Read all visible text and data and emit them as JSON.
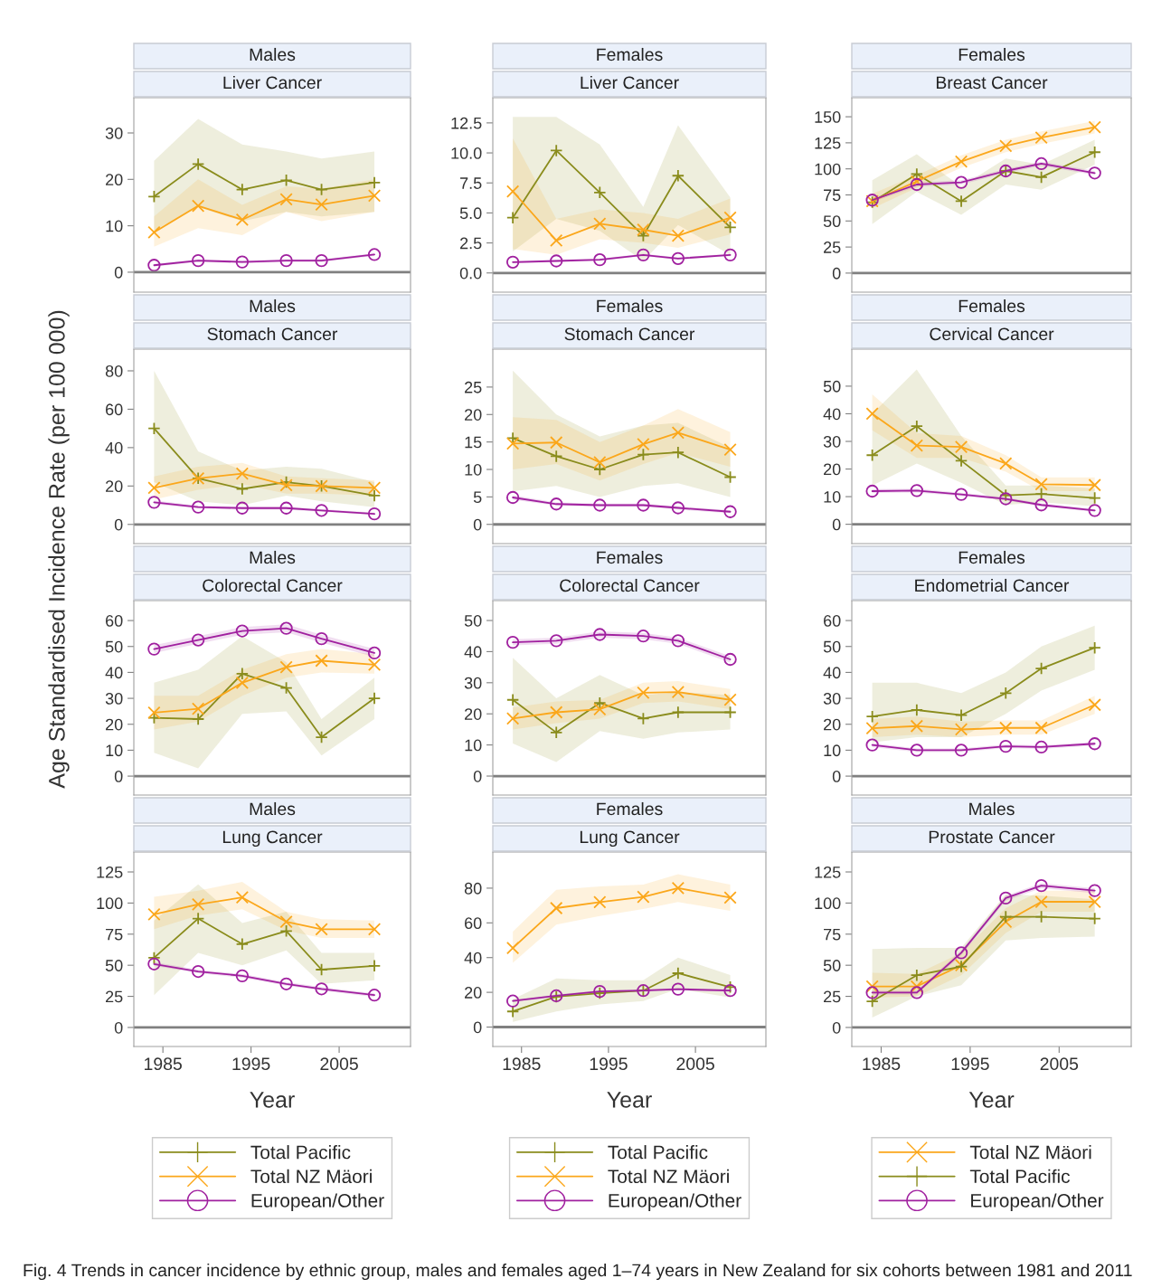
{
  "chart_data": [
    {
      "type": "line",
      "title": "Males",
      "subtitle": "Liver Cancer",
      "ylabel": "Age Standardised Incidence Rate (per 100 000)",
      "annotations": [
        "Fig. 4 Trends in cancer incidence by ethnic group, males and females aged 1–74 years in New Zealand for six cohorts between 1981 and 2011"
      ],
      "x": [
        1984,
        1989,
        1994,
        1999,
        2003,
        2009
      ],
      "xlim": [
        1981.7,
        2013.1
      ],
      "xticks": [
        1985,
        1995,
        2005
      ],
      "ylim": [
        -4.3,
        37.6
      ],
      "yticks": [
        0,
        10,
        20,
        30
      ],
      "tick_labels": "y",
      "ref_lines": [
        {
          "axis": "y",
          "value": 0,
          "color": "#808080"
        }
      ],
      "series": [
        {
          "color": "#8a8c1c",
          "marker": "plus",
          "values": [
            16.3,
            23.3,
            17.8,
            19.8,
            17.8,
            19.3
          ],
          "lower": [
            9,
            14,
            11,
            13,
            12,
            13
          ],
          "upper": [
            24,
            33,
            27.5,
            26,
            24.5,
            26
          ]
        },
        {
          "color": "#fba71b",
          "marker": "cross",
          "values": [
            8.6,
            14.3,
            11.3,
            15.7,
            14.6,
            16.5
          ],
          "lower": [
            5.5,
            9.5,
            8,
            13,
            11,
            13
          ],
          "upper": [
            12,
            20,
            14.5,
            18.5,
            18,
            20
          ]
        },
        {
          "color": "#a0209f",
          "marker": "circle",
          "values": [
            1.5,
            2.5,
            2.2,
            2.5,
            2.5,
            3.8
          ],
          "lower": [
            1.2,
            2.2,
            1.9,
            2.2,
            2.2,
            3.5
          ],
          "upper": [
            1.8,
            2.8,
            2.5,
            2.8,
            2.8,
            4.1
          ]
        }
      ]
    },
    {
      "type": "line",
      "title": "Females",
      "subtitle": "Liver Cancer",
      "x": [
        1984,
        1989,
        1994,
        1999,
        2003,
        2009
      ],
      "xlim": [
        1981.7,
        2013.1
      ],
      "xticks": [
        1985,
        1995,
        2005
      ],
      "ylim": [
        -1.6,
        14.6
      ],
      "yticks": [
        {
          "value": 0,
          "label": "0.0"
        },
        2.5,
        {
          "value": 5,
          "label": "5.0"
        },
        7.5,
        {
          "value": 10,
          "label": "10.0"
        },
        12.5
      ],
      "tick_labels": "y",
      "ref_lines": [
        {
          "axis": "y",
          "value": 0,
          "color": "#808080"
        }
      ],
      "series": [
        {
          "color": "#8a8c1c",
          "marker": "plus",
          "values": [
            4.6,
            10.2,
            6.7,
            3.1,
            8.1,
            3.8
          ],
          "lower": [
            1.8,
            4.5,
            3.5,
            1.0,
            4.0,
            1.5
          ],
          "upper": [
            13,
            13,
            10.7,
            5.5,
            12.3,
            6.3
          ]
        },
        {
          "color": "#fba71b",
          "marker": "cross",
          "values": [
            6.8,
            2.7,
            4.1,
            3.6,
            3.1,
            4.6
          ],
          "lower": [
            2,
            1.5,
            2.8,
            2.5,
            2.1,
            3.2
          ],
          "upper": [
            11.2,
            4.5,
            5.3,
            5,
            4.5,
            6.2
          ]
        },
        {
          "color": "#a0209f",
          "marker": "circle",
          "values": [
            0.9,
            1.0,
            1.1,
            1.5,
            1.2,
            1.5
          ],
          "lower": [
            0.8,
            0.9,
            1.0,
            1.4,
            1.1,
            1.4
          ],
          "upper": [
            1.0,
            1.1,
            1.2,
            1.6,
            1.3,
            1.6
          ]
        }
      ]
    },
    {
      "type": "line",
      "title": "Females",
      "subtitle": "Breast Cancer",
      "x": [
        1984,
        1989,
        1994,
        1999,
        2003,
        2009
      ],
      "xlim": [
        1981.7,
        2013.1
      ],
      "xticks": [
        1985,
        1995,
        2005
      ],
      "ylim": [
        -18.3,
        168.3
      ],
      "yticks": [
        0,
        25,
        50,
        75,
        100,
        125,
        150
      ],
      "tick_labels": "y",
      "ref_lines": [
        {
          "axis": "y",
          "value": 0,
          "color": "#808080"
        }
      ],
      "series": [
        {
          "color": "#8a8c1c",
          "marker": "plus",
          "values": [
            68,
            95,
            69,
            98,
            92,
            116
          ],
          "lower": [
            47,
            78,
            56,
            85,
            80,
            104
          ],
          "upper": [
            89,
            114,
            83,
            110,
            104,
            128
          ]
        },
        {
          "color": "#fba71b",
          "marker": "cross",
          "values": [
            69,
            88,
            107,
            122,
            130,
            140
          ],
          "lower": [
            62,
            82,
            101,
            116,
            124,
            134
          ],
          "upper": [
            76,
            94,
            113,
            128,
            136,
            146
          ]
        },
        {
          "color": "#a0209f",
          "marker": "circle",
          "values": [
            70,
            85,
            87,
            98,
            105,
            96
          ],
          "lower": [
            68,
            83,
            85,
            96,
            103,
            94
          ],
          "upper": [
            72,
            87,
            89,
            100,
            107,
            98
          ]
        }
      ]
    },
    {
      "type": "line",
      "title": "Males",
      "subtitle": "Stomach Cancer",
      "x": [
        1984,
        1989,
        1994,
        1999,
        2003,
        2009
      ],
      "xlim": [
        1981.7,
        2013.1
      ],
      "xticks": [
        1985,
        1995,
        2005
      ],
      "ylim": [
        -10,
        91.3
      ],
      "yticks": [
        0,
        20,
        40,
        60,
        80
      ],
      "tick_labels": "y",
      "ref_lines": [
        {
          "axis": "y",
          "value": 0,
          "color": "#808080"
        }
      ],
      "series": [
        {
          "color": "#8a8c1c",
          "marker": "plus",
          "values": [
            50,
            24,
            18.5,
            22,
            20,
            15
          ],
          "lower": [
            22,
            12,
            10,
            15,
            12,
            9
          ],
          "upper": [
            80,
            38,
            28,
            30,
            29,
            22
          ]
        },
        {
          "color": "#fba71b",
          "marker": "cross",
          "values": [
            19,
            24,
            26.5,
            20.5,
            20,
            19
          ],
          "lower": [
            13,
            18,
            21,
            16,
            16,
            15
          ],
          "upper": [
            25,
            30,
            32,
            25,
            24,
            23
          ]
        },
        {
          "color": "#a0209f",
          "marker": "circle",
          "values": [
            11.5,
            9,
            8.5,
            8.5,
            7.3,
            5.5
          ],
          "lower": [
            10.5,
            8.2,
            7.7,
            7.7,
            6.6,
            4.9
          ],
          "upper": [
            12.5,
            9.8,
            9.3,
            9.3,
            8,
            6.1
          ]
        }
      ]
    },
    {
      "type": "line",
      "title": "Females",
      "subtitle": "Stomach Cancer",
      "x": [
        1984,
        1989,
        1994,
        1999,
        2003,
        2009
      ],
      "xlim": [
        1981.7,
        2013.1
      ],
      "xticks": [
        1985,
        1995,
        2005
      ],
      "ylim": [
        -3.5,
        31.9
      ],
      "yticks": [
        0,
        5,
        10,
        15,
        20,
        25
      ],
      "tick_labels": "y",
      "ref_lines": [
        {
          "axis": "y",
          "value": 0,
          "color": "#808080"
        }
      ],
      "series": [
        {
          "color": "#8a8c1c",
          "marker": "plus",
          "values": [
            15.7,
            12.4,
            10,
            12.7,
            13.1,
            8.6
          ],
          "lower": [
            6,
            7,
            5,
            7,
            7.5,
            5
          ],
          "upper": [
            28,
            20,
            16,
            18,
            18.5,
            14
          ]
        },
        {
          "color": "#fba71b",
          "marker": "cross",
          "values": [
            14.7,
            14.9,
            11.3,
            14.6,
            16.7,
            13.6
          ],
          "lower": [
            10,
            11,
            8,
            11,
            13,
            10.5
          ],
          "upper": [
            19.5,
            19,
            15,
            18,
            21,
            16.8
          ]
        },
        {
          "color": "#a0209f",
          "marker": "circle",
          "values": [
            4.9,
            3.7,
            3.5,
            3.5,
            3.0,
            2.3
          ],
          "lower": [
            4.5,
            3.4,
            3.2,
            3.2,
            2.7,
            2.0
          ],
          "upper": [
            5.3,
            4.0,
            3.8,
            3.8,
            3.3,
            2.6
          ]
        }
      ]
    },
    {
      "type": "line",
      "title": "Females",
      "subtitle": "Cervical Cancer",
      "x": [
        1984,
        1989,
        1994,
        1999,
        2003,
        2009
      ],
      "xlim": [
        1981.7,
        2013.1
      ],
      "xticks": [
        1985,
        1995,
        2005
      ],
      "ylim": [
        -7,
        63.4
      ],
      "yticks": [
        0,
        10,
        20,
        30,
        40,
        50
      ],
      "tick_labels": "y",
      "ref_lines": [
        {
          "axis": "y",
          "value": 0,
          "color": "#808080"
        }
      ],
      "series": [
        {
          "color": "#8a8c1c",
          "marker": "plus",
          "values": [
            25,
            35.5,
            23,
            10.5,
            11,
            9.5
          ],
          "lower": [
            14,
            22,
            15,
            7,
            8,
            6.5
          ],
          "upper": [
            40,
            56,
            32,
            14,
            14,
            13
          ]
        },
        {
          "color": "#fba71b",
          "marker": "cross",
          "values": [
            40,
            28.5,
            28,
            22,
            14.5,
            14.2
          ],
          "lower": [
            34,
            24,
            24,
            19,
            12,
            12
          ],
          "upper": [
            47,
            33,
            32,
            25,
            17,
            17
          ]
        },
        {
          "color": "#a0209f",
          "marker": "circle",
          "values": [
            12,
            12.2,
            10.8,
            9.2,
            7,
            5
          ],
          "lower": [
            11.3,
            11.5,
            10.2,
            8.6,
            6.4,
            4.5
          ],
          "upper": [
            12.7,
            12.9,
            11.4,
            9.8,
            7.6,
            5.5
          ]
        }
      ]
    },
    {
      "type": "line",
      "title": "Males",
      "subtitle": "Colorectal Cancer",
      "x": [
        1984,
        1989,
        1994,
        1999,
        2003,
        2009
      ],
      "xlim": [
        1981.7,
        2013.1
      ],
      "xticks": [
        1985,
        1995,
        2005
      ],
      "ylim": [
        -7.3,
        67.7
      ],
      "yticks": [
        0,
        10,
        20,
        30,
        40,
        50,
        60
      ],
      "tick_labels": "y",
      "ref_lines": [
        {
          "axis": "y",
          "value": 0,
          "color": "#808080"
        }
      ],
      "series": [
        {
          "color": "#8a8c1c",
          "marker": "plus",
          "values": [
            22.5,
            22,
            39.5,
            34,
            15,
            30
          ],
          "lower": [
            9,
            3,
            24,
            25,
            8,
            22
          ],
          "upper": [
            36,
            41,
            54,
            44,
            22,
            38
          ]
        },
        {
          "color": "#fba71b",
          "marker": "cross",
          "values": [
            24.5,
            26,
            36,
            42,
            44.5,
            43
          ],
          "lower": [
            18,
            21,
            31,
            38,
            40,
            39.5
          ],
          "upper": [
            31,
            31,
            41,
            47,
            49,
            47
          ]
        },
        {
          "color": "#a0209f",
          "marker": "circle",
          "values": [
            49,
            52.5,
            56,
            57,
            53,
            47.5
          ],
          "lower": [
            47.5,
            51,
            54.5,
            55.5,
            51.5,
            46
          ],
          "upper": [
            50.5,
            54,
            57.5,
            58.5,
            54.5,
            49
          ]
        }
      ]
    },
    {
      "type": "line",
      "title": "Females",
      "subtitle": "Colorectal Cancer",
      "x": [
        1984,
        1989,
        1994,
        1999,
        2003,
        2009
      ],
      "xlim": [
        1981.7,
        2013.1
      ],
      "xticks": [
        1985,
        1995,
        2005
      ],
      "ylim": [
        -6.1,
        56.4
      ],
      "yticks": [
        0,
        10,
        20,
        30,
        40,
        50
      ],
      "tick_labels": "y",
      "ref_lines": [
        {
          "axis": "y",
          "value": 0,
          "color": "#808080"
        }
      ],
      "series": [
        {
          "color": "#8a8c1c",
          "marker": "plus",
          "values": [
            24.5,
            14,
            23.5,
            18.5,
            20.5,
            20.5
          ],
          "lower": [
            10.5,
            4.5,
            14.5,
            12,
            14,
            15
          ],
          "upper": [
            38,
            25,
            32.5,
            26,
            27,
            26
          ]
        },
        {
          "color": "#fba71b",
          "marker": "cross",
          "values": [
            18.5,
            20.5,
            21.5,
            26.8,
            27,
            24.5
          ],
          "lower": [
            15,
            17,
            18.5,
            23.5,
            24,
            21.5
          ],
          "upper": [
            22,
            24,
            24.5,
            30,
            30.5,
            28
          ]
        },
        {
          "color": "#a0209f",
          "marker": "circle",
          "values": [
            43,
            43.5,
            45.5,
            45,
            43.5,
            37.5
          ],
          "lower": [
            42,
            42.5,
            44.5,
            44,
            42.5,
            36.5
          ],
          "upper": [
            44,
            44.5,
            46.5,
            46,
            44.5,
            38.5
          ]
        }
      ]
    },
    {
      "type": "line",
      "title": "Females",
      "subtitle": "Endometrial Cancer",
      "x": [
        1984,
        1989,
        1994,
        1999,
        2003,
        2009
      ],
      "xlim": [
        1981.7,
        2013.1
      ],
      "xticks": [
        1985,
        1995,
        2005
      ],
      "ylim": [
        -7.3,
        67.7
      ],
      "yticks": [
        0,
        10,
        20,
        30,
        40,
        50,
        60
      ],
      "tick_labels": "y",
      "ref_lines": [
        {
          "axis": "y",
          "value": 0,
          "color": "#808080"
        }
      ],
      "series": [
        {
          "color": "#8a8c1c",
          "marker": "plus",
          "values": [
            23,
            25.5,
            23.5,
            32,
            41.5,
            49.5
          ],
          "lower": [
            13,
            15,
            15,
            24,
            33,
            41
          ],
          "upper": [
            36,
            36,
            32,
            40,
            50,
            58
          ]
        },
        {
          "color": "#fba71b",
          "marker": "cross",
          "values": [
            18.5,
            19.3,
            18,
            18.6,
            18.6,
            27.5
          ],
          "lower": [
            15,
            16,
            15,
            16,
            16,
            24
          ],
          "upper": [
            22,
            23,
            21,
            21.5,
            21.5,
            31
          ]
        },
        {
          "color": "#a0209f",
          "marker": "circle",
          "values": [
            12,
            10,
            10,
            11.5,
            11.2,
            12.5
          ],
          "lower": [
            11.2,
            9.3,
            9.3,
            10.8,
            10.5,
            11.8
          ],
          "upper": [
            12.8,
            10.7,
            10.7,
            12.2,
            11.9,
            13.2
          ]
        }
      ]
    },
    {
      "type": "line",
      "title": "Males",
      "subtitle": "Lung Cancer",
      "xlabel": "Year",
      "legend": "bottom",
      "x": [
        1984,
        1989,
        1994,
        1999,
        2003,
        2009
      ],
      "xlim": [
        1981.7,
        2013.1
      ],
      "xticks": [
        1985,
        1995,
        2005
      ],
      "ylim": [
        -15.3,
        141
      ],
      "yticks": [
        0,
        25,
        50,
        75,
        100,
        125
      ],
      "ref_lines": [
        {
          "axis": "y",
          "value": 0,
          "color": "#808080"
        }
      ],
      "series": [
        {
          "name": "Total Pacific",
          "color": "#8a8c1c",
          "marker": "plus",
          "values": [
            56,
            87.5,
            67,
            77.5,
            46.5,
            49.5
          ],
          "lower": [
            26,
            60,
            50,
            62,
            35,
            38
          ],
          "upper": [
            86,
            115,
            84,
            93,
            60,
            60
          ]
        },
        {
          "name": "Total NZ Mäori",
          "color": "#fba71b",
          "marker": "cross",
          "values": [
            91,
            99,
            104.5,
            85,
            79,
            79
          ],
          "lower": [
            79,
            90,
            95,
            78,
            72,
            72
          ],
          "upper": [
            105,
            110,
            117,
            93,
            87,
            86
          ]
        },
        {
          "name": "European/Other",
          "color": "#a0209f",
          "marker": "circle",
          "values": [
            51,
            45,
            41.5,
            35,
            31,
            26
          ],
          "lower": [
            49.5,
            43.5,
            40,
            33.5,
            29.5,
            24.5
          ],
          "upper": [
            52.5,
            46.5,
            43,
            36.5,
            32.5,
            27.5
          ]
        }
      ]
    },
    {
      "type": "line",
      "title": "Females",
      "subtitle": "Lung Cancer",
      "xlabel": "Year",
      "legend": "bottom",
      "x": [
        1984,
        1989,
        1994,
        1999,
        2003,
        2009
      ],
      "xlim": [
        1981.7,
        2013.1
      ],
      "xticks": [
        1985,
        1995,
        2005
      ],
      "ylim": [
        -11.2,
        100.8
      ],
      "yticks": [
        0,
        20,
        40,
        60,
        80
      ],
      "ref_lines": [
        {
          "axis": "y",
          "value": 0,
          "color": "#808080"
        }
      ],
      "series": [
        {
          "name": "Total Pacific",
          "color": "#8a8c1c",
          "marker": "plus",
          "values": [
            9,
            17.5,
            19.5,
            21,
            31,
            23
          ],
          "lower": [
            3,
            9,
            13,
            15,
            22,
            17
          ],
          "upper": [
            16,
            28,
            27,
            27,
            40,
            30
          ]
        },
        {
          "name": "Total NZ Mäori",
          "color": "#fba71b",
          "marker": "cross",
          "values": [
            45.5,
            68.5,
            72,
            75,
            80,
            74.5
          ],
          "lower": [
            37,
            59,
            64,
            68,
            72,
            67
          ],
          "upper": [
            55,
            79,
            81,
            82,
            88,
            82
          ]
        },
        {
          "name": "European/Other",
          "color": "#a0209f",
          "marker": "circle",
          "values": [
            15,
            18,
            20.5,
            21,
            21.8,
            21
          ],
          "lower": [
            14.3,
            17.3,
            19.8,
            20.3,
            21.1,
            20.3
          ],
          "upper": [
            15.7,
            18.7,
            21.2,
            21.7,
            22.5,
            21.7
          ]
        }
      ]
    },
    {
      "type": "line",
      "title": "Males",
      "subtitle": "Prostate Cancer",
      "xlabel": "Year",
      "legend": "bottom",
      "x": [
        1984,
        1989,
        1994,
        1999,
        2003,
        2009
      ],
      "xlim": [
        1981.7,
        2013.1
      ],
      "xticks": [
        1985,
        1995,
        2005
      ],
      "ylim": [
        -15.3,
        141
      ],
      "yticks": [
        0,
        25,
        50,
        75,
        100,
        125
      ],
      "ref_lines": [
        {
          "axis": "y",
          "value": 0,
          "color": "#808080"
        }
      ],
      "series": [
        {
          "name": "Total NZ Mäori",
          "color": "#fba71b",
          "marker": "cross",
          "values": [
            33,
            33,
            50,
            85,
            101,
            101
          ],
          "lower": [
            24,
            25,
            42,
            76,
            93,
            93
          ],
          "upper": [
            44,
            43,
            60,
            96,
            110,
            110
          ]
        },
        {
          "name": "Total Pacific",
          "color": "#8a8c1c",
          "marker": "plus",
          "values": [
            21,
            42,
            49,
            89,
            89,
            87.5
          ],
          "lower": [
            8,
            25,
            34,
            70,
            72,
            73
          ],
          "upper": [
            63,
            64,
            64,
            107,
            106,
            103
          ]
        },
        {
          "name": "European/Other",
          "color": "#a0209f",
          "marker": "circle",
          "values": [
            28,
            28,
            60,
            104,
            114,
            110
          ],
          "lower": [
            26.5,
            26.5,
            58,
            102,
            112,
            108
          ],
          "upper": [
            29.5,
            29.5,
            62,
            106,
            116,
            112
          ]
        }
      ]
    }
  ]
}
